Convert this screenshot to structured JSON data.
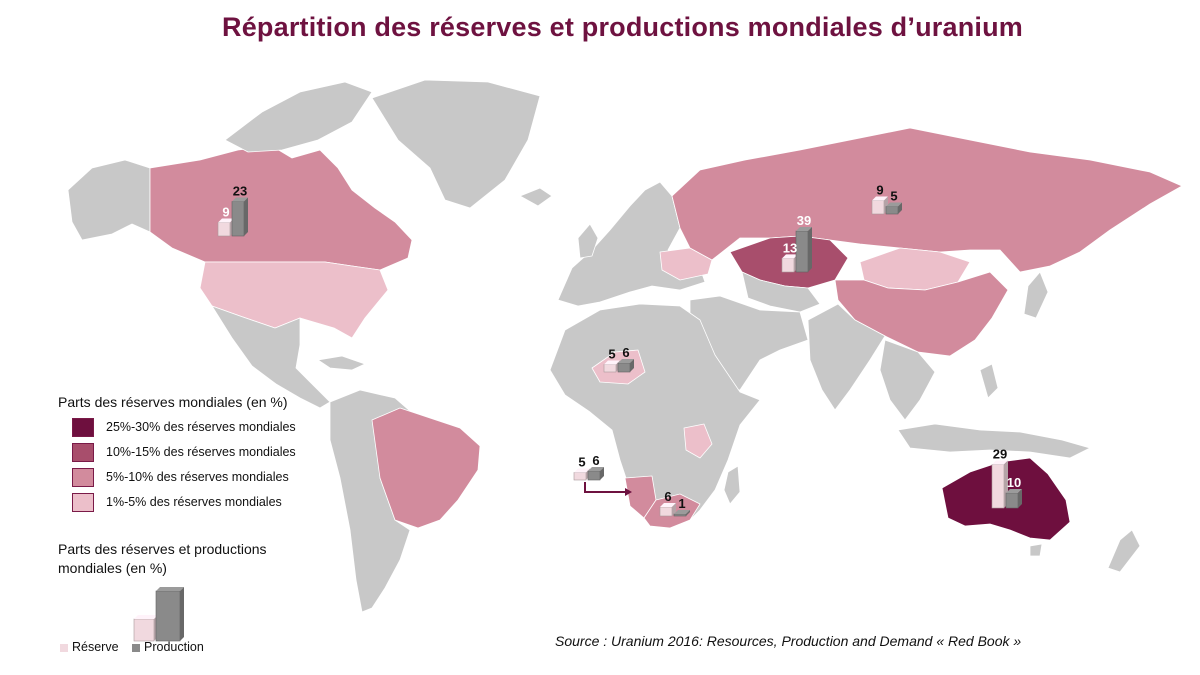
{
  "title": "Répartition des réserves et productions mondiales d’uranium",
  "colors": {
    "land": "#c8c8c8",
    "border": "#ffffff",
    "cat_25_30": "#6e0f3e",
    "cat_10_15": "#a84e6c",
    "cat_5_10": "#d28b9d",
    "cat_1_5": "#ecbfca",
    "reserve_bar": "#f1d9df",
    "production_bar": "#8a8a8a"
  },
  "legend_reserves": {
    "title": "Parts des réserves mondiales (en %)",
    "items": [
      {
        "label": "25%-30% des réserves mondiales",
        "color": "#6e0f3e"
      },
      {
        "label": "10%-15% des réserves mondiales",
        "color": "#a84e6c"
      },
      {
        "label": "5%-10% des réserves mondiales",
        "color": "#d28b9d"
      },
      {
        "label": "1%-5% des réserves mondiales",
        "color": "#ecbfca"
      }
    ]
  },
  "legend_bars": {
    "title": "Parts des réserves et productions mondiales (en %)",
    "reserve_label": "Réserve",
    "production_label": "Production"
  },
  "source": "Source :  Uranium 2016: Resources, Production and Demand « Red Book »",
  "region_shares": [
    {
      "region": "Australie",
      "category": "25%-30%"
    },
    {
      "region": "Kazakhstan",
      "category": "10%-15%"
    },
    {
      "region": "Canada",
      "category": "5%-10%"
    },
    {
      "region": "Russie",
      "category": "5%-10%"
    },
    {
      "region": "Chine",
      "category": "5%-10%"
    },
    {
      "region": "Brésil",
      "category": "5%-10%"
    },
    {
      "region": "Namibie",
      "category": "5%-10%"
    },
    {
      "region": "Afrique du Sud",
      "category": "5%-10%"
    },
    {
      "region": "États-Unis",
      "category": "1%-5%"
    },
    {
      "region": "Ukraine",
      "category": "1%-5%"
    },
    {
      "region": "Mongolie",
      "category": "1%-5%"
    },
    {
      "region": "Niger",
      "category": "1%-5%"
    },
    {
      "region": "Tanzanie",
      "category": "1%-5%"
    }
  ],
  "chart_data": {
    "type": "bar",
    "series": [
      {
        "name": "Réserve",
        "values": [
          9,
          13,
          9,
          5,
          5,
          6,
          29
        ]
      },
      {
        "name": "Production",
        "values": [
          23,
          39,
          5,
          6,
          6,
          1,
          10
        ]
      }
    ]
  }
}
